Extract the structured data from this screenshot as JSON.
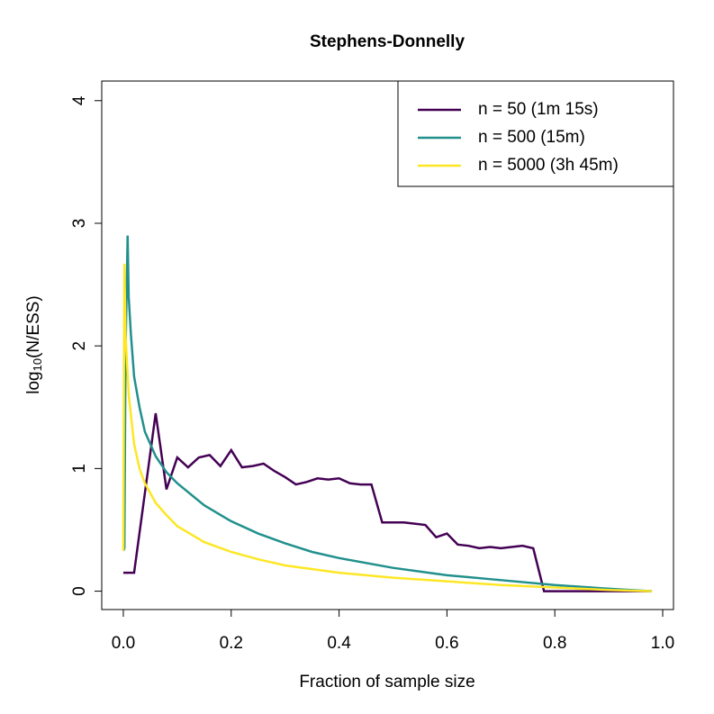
{
  "chart_data": {
    "type": "line",
    "title": "Stephens-Donnelly",
    "x_label": "Fraction of sample size",
    "y_label_parts": [
      "log",
      "10",
      "(N/ESS)"
    ],
    "xlim": [
      -0.04,
      1.02
    ],
    "ylim": [
      -0.15,
      4.16
    ],
    "xticks": [
      {
        "value": 0,
        "label": "0.0"
      },
      0.2,
      0.4,
      0.6,
      0.8,
      {
        "value": 1,
        "label": "1.0"
      }
    ],
    "yticks": [
      0,
      1,
      2,
      3,
      4
    ],
    "legend": "topright",
    "series": [
      {
        "name": "n = 50 (1m 15s)",
        "color": "#440154",
        "x": [
          0,
          0.02,
          0.04,
          0.06,
          0.08,
          0.1,
          0.12,
          0.14,
          0.16,
          0.18,
          0.2,
          0.22,
          0.24,
          0.26,
          0.28,
          0.3,
          0.32,
          0.34,
          0.36,
          0.38,
          0.4,
          0.42,
          0.44,
          0.46,
          0.48,
          0.5,
          0.52,
          0.54,
          0.56,
          0.58,
          0.6,
          0.62,
          0.64,
          0.66,
          0.68,
          0.7,
          0.72,
          0.74,
          0.76,
          0.78,
          0.8,
          0.82,
          0.84,
          0.86,
          0.88,
          0.9,
          0.92,
          0.94,
          0.96,
          0.98
        ],
        "values": [
          0.15,
          0.15,
          0.8,
          1.45,
          0.83,
          1.09,
          1.01,
          1.09,
          1.11,
          1.02,
          1.15,
          1.01,
          1.02,
          1.04,
          0.98,
          0.93,
          0.87,
          0.89,
          0.92,
          0.91,
          0.92,
          0.88,
          0.87,
          0.87,
          0.56,
          0.56,
          0.56,
          0.55,
          0.54,
          0.44,
          0.47,
          0.38,
          0.37,
          0.35,
          0.36,
          0.35,
          0.36,
          0.37,
          0.35,
          0,
          0,
          0,
          0,
          0,
          0,
          0,
          0,
          0,
          0,
          0
        ]
      },
      {
        "name": "n = 500 (15m)",
        "color": "#21908C",
        "x": [
          0,
          0.002,
          0.004,
          0.008,
          0.01,
          0.014,
          0.02,
          0.03,
          0.04,
          0.06,
          0.08,
          0.1,
          0.15,
          0.2,
          0.25,
          0.3,
          0.35,
          0.4,
          0.5,
          0.6,
          0.7,
          0.8,
          0.9,
          0.98
        ],
        "values": [
          0.33,
          0.35,
          1.9,
          2.9,
          2.4,
          2.1,
          1.75,
          1.5,
          1.3,
          1.1,
          0.97,
          0.88,
          0.7,
          0.57,
          0.47,
          0.39,
          0.32,
          0.27,
          0.19,
          0.13,
          0.09,
          0.05,
          0.02,
          0
        ]
      },
      {
        "name": "n = 5000 (3h 45m)",
        "color": "#FDE725",
        "x": [
          0,
          0.002,
          0.004,
          0.01,
          0.02,
          0.03,
          0.04,
          0.06,
          0.08,
          0.1,
          0.15,
          0.2,
          0.25,
          0.3,
          0.4,
          0.5,
          0.6,
          0.7,
          0.8,
          0.9,
          0.98
        ],
        "values": [
          0.33,
          2.67,
          2.1,
          1.6,
          1.2,
          1.0,
          0.88,
          0.72,
          0.62,
          0.53,
          0.4,
          0.32,
          0.26,
          0.21,
          0.15,
          0.11,
          0.08,
          0.05,
          0.03,
          0.01,
          0
        ]
      }
    ]
  }
}
